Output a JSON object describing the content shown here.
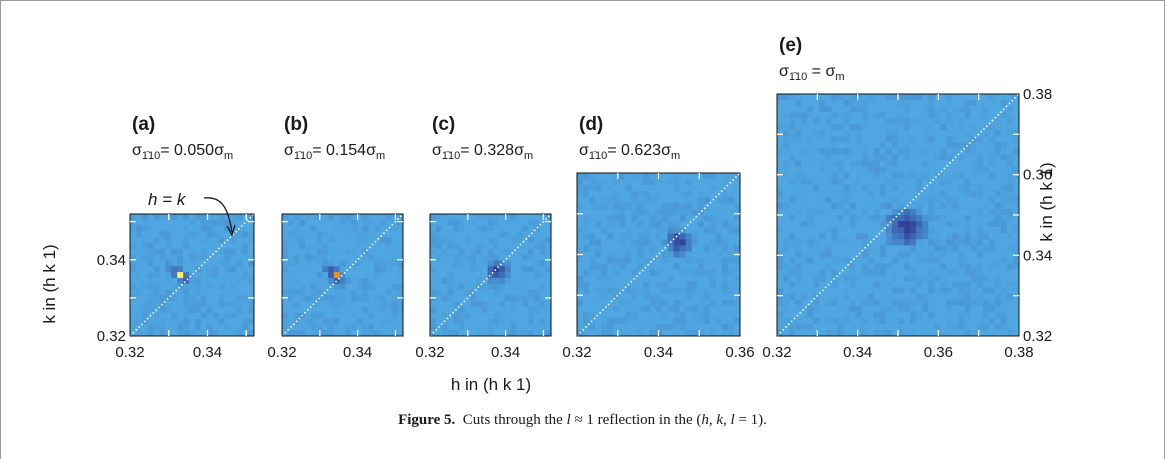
{
  "figure": {
    "label": "Figure 5.",
    "caption": {
      "pre": "Cuts through the ",
      "var_l": "l",
      "mid": " ≈ 1 reflection in the (",
      "tuple": "h, k, l",
      "post": " = 1)."
    }
  },
  "annotation": {
    "text": "h = k"
  },
  "axes": {
    "xlabel": "h in (h k 1)",
    "ylabel": "k in (h k 1)"
  },
  "colors": {
    "background": "#4fa6e0",
    "dark": "#2e3a92",
    "hot_red": "#c21b1b",
    "hot_orange": "#f2901e",
    "hot_yellow": "#fff05a"
  },
  "chart_data": [
    {
      "type": "heatmap",
      "panel": "(a)",
      "sigma_label": "σ-110 = 0.050σm",
      "sigma_value": "= 0.050σ",
      "xlim": [
        0.32,
        0.352
      ],
      "ylim": [
        0.32,
        0.352
      ],
      "xticks": [
        "0.32",
        "0.34"
      ],
      "yticks": [
        "0.32",
        "0.34"
      ],
      "peak": {
        "h": 0.333,
        "k": 0.336
      },
      "intensity": "strong"
    },
    {
      "type": "heatmap",
      "panel": "(b)",
      "sigma_label": "σ-110 = 0.154σm",
      "sigma_value": "= 0.154σ",
      "xlim": [
        0.32,
        0.352
      ],
      "ylim": [
        0.32,
        0.352
      ],
      "xticks": [
        "0.32",
        "0.34"
      ],
      "yticks": [],
      "peak": {
        "h": 0.334,
        "k": 0.336
      },
      "intensity": "medium"
    },
    {
      "type": "heatmap",
      "panel": "(c)",
      "sigma_label": "σ-110 = 0.328σm",
      "sigma_value": "= 0.328σ",
      "xlim": [
        0.32,
        0.352
      ],
      "ylim": [
        0.32,
        0.352
      ],
      "xticks": [
        "0.32",
        "0.34"
      ],
      "yticks": [],
      "peak": {
        "h": 0.338,
        "k": 0.337
      },
      "intensity": "diffuse"
    },
    {
      "type": "heatmap",
      "panel": "(d)",
      "sigma_label": "σ-110 = 0.623σm",
      "sigma_value": "= 0.623σ",
      "xlim": [
        0.32,
        0.36
      ],
      "ylim": [
        0.32,
        0.36
      ],
      "xticks": [
        "0.32",
        "0.34",
        "0.36"
      ],
      "yticks": [],
      "peak": {
        "h": 0.345,
        "k": 0.343
      },
      "intensity": "diffuse"
    },
    {
      "type": "heatmap",
      "panel": "(e)",
      "sigma_label": "σ-110 = σm",
      "sigma_value": " = σ",
      "xlim": [
        0.32,
        0.38
      ],
      "ylim": [
        0.32,
        0.38
      ],
      "xticks": [
        "0.32",
        "0.34",
        "0.36",
        "0.38"
      ],
      "yticks": [
        "0.32",
        "0.34",
        "0.36",
        "0.38"
      ],
      "peak": {
        "h": 0.352,
        "k": 0.347
      },
      "intensity": "diffuse"
    }
  ]
}
